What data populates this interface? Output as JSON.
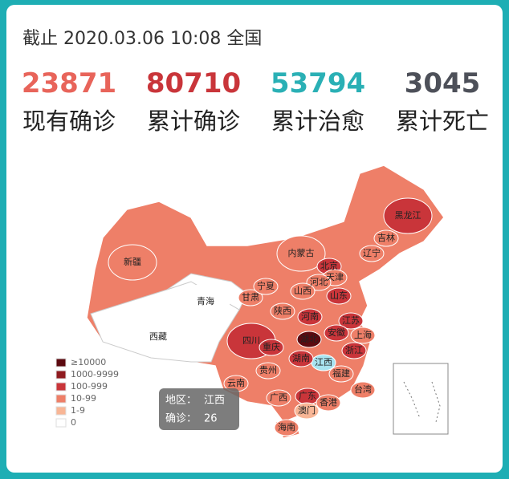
{
  "header": {
    "title": "截止 2020.03.06 10:08 全国"
  },
  "stats": [
    {
      "value": 23871,
      "label": "现有确诊",
      "color": "#e8645a"
    },
    {
      "value": 80710,
      "label": "累计确诊",
      "color": "#c9353a"
    },
    {
      "value": 53794,
      "label": "累计治愈",
      "color": "#2ab0b5"
    },
    {
      "value": 3045,
      "label": "累计死亡",
      "color": "#4d5059"
    }
  ],
  "map": {
    "provinces": [
      {
        "name": "新疆",
        "color": "#ee7f68"
      },
      {
        "name": "西藏",
        "color": "#ffffff"
      },
      {
        "name": "青海",
        "color": "#ffffff"
      },
      {
        "name": "甘肃",
        "color": "#ee7f68"
      },
      {
        "name": "宁夏",
        "color": "#ee7f68"
      },
      {
        "name": "内蒙古",
        "color": "#ee7f68"
      },
      {
        "name": "黑龙江",
        "color": "#c9353a"
      },
      {
        "name": "吉林",
        "color": "#ee7f68"
      },
      {
        "name": "辽宁",
        "color": "#ee7f68"
      },
      {
        "name": "北京",
        "color": "#c9353a"
      },
      {
        "name": "天津",
        "color": "#ee7f68"
      },
      {
        "name": "河北",
        "color": "#ee7f68"
      },
      {
        "name": "山西",
        "color": "#ee7f68"
      },
      {
        "name": "陕西",
        "color": "#ee7f68"
      },
      {
        "name": "山东",
        "color": "#c9353a"
      },
      {
        "name": "河南",
        "color": "#c9353a"
      },
      {
        "name": "江苏",
        "color": "#c9353a"
      },
      {
        "name": "安徽",
        "color": "#c9353a"
      },
      {
        "name": "上海",
        "color": "#ee7f68"
      },
      {
        "name": "湖北",
        "color": "#5c0a10"
      },
      {
        "name": "四川",
        "color": "#c9353a"
      },
      {
        "name": "重庆",
        "color": "#c9353a"
      },
      {
        "name": "浙江",
        "color": "#c9353a"
      },
      {
        "name": "江西",
        "color": "#a8e3f0"
      },
      {
        "name": "湖南",
        "color": "#c9353a"
      },
      {
        "name": "贵州",
        "color": "#ee7f68"
      },
      {
        "name": "云南",
        "color": "#ee7f68"
      },
      {
        "name": "福建",
        "color": "#ee7f68"
      },
      {
        "name": "台湾",
        "color": "#ee7f68"
      },
      {
        "name": "广西",
        "color": "#ee7f68"
      },
      {
        "name": "广东",
        "color": "#c9353a"
      },
      {
        "name": "香港",
        "color": "#ee7f68"
      },
      {
        "name": "澳门",
        "color": "#f8b696"
      },
      {
        "name": "海南",
        "color": "#ee7f68"
      }
    ],
    "legend": [
      {
        "label": "≥10000",
        "color": "#5c0a10"
      },
      {
        "label": "1000-9999",
        "color": "#8f1b1f"
      },
      {
        "label": "100-999",
        "color": "#c9353a"
      },
      {
        "label": "10-99",
        "color": "#ee7f68"
      },
      {
        "label": "1-9",
        "color": "#f8b696"
      },
      {
        "label": "0",
        "color": "#ffffff"
      }
    ],
    "tooltip": {
      "region_label": "地区：",
      "region": "江西",
      "count_label": "确诊：",
      "count": 26
    }
  }
}
